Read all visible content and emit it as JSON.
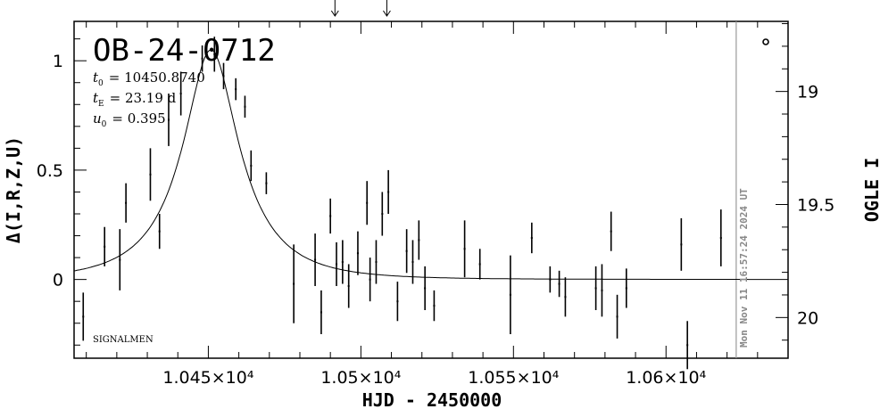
{
  "chart_data": {
    "type": "scatter",
    "title": "OB-24-0712",
    "xlabel": "HJD - 2450000",
    "ylabel": "Δ(I,R,Z,U)",
    "y2label": "OGLE I",
    "xlim": [
      10406,
      10640
    ],
    "ylim": [
      -0.36,
      1.18
    ],
    "y2lim": [
      20.18,
      18.69
    ],
    "grid": false,
    "x_ticks": [
      {
        "value": 10450,
        "label": "1.045×10⁴"
      },
      {
        "value": 10500,
        "label": "1.05×10⁴"
      },
      {
        "value": 10550,
        "label": "1.055×10⁴"
      },
      {
        "value": 10600,
        "label": "1.06×10⁴"
      }
    ],
    "y_ticks": [
      {
        "value": 0,
        "label": "0"
      },
      {
        "value": 0.5,
        "label": "0.5"
      },
      {
        "value": 1,
        "label": "1"
      }
    ],
    "y2_ticks": [
      {
        "value": 19,
        "label": "19"
      },
      {
        "value": 19.5,
        "label": "19.5"
      },
      {
        "value": 20,
        "label": "20"
      }
    ],
    "params": [
      {
        "name": "t",
        "sub": "0",
        "value": "= 10450.8740"
      },
      {
        "name": "t",
        "sub": "E",
        "value": "= 23.19 d"
      },
      {
        "name": "u",
        "sub": "0",
        "value": "= 0.395"
      }
    ],
    "model": {
      "t0": 10450.874,
      "tE": 23.19,
      "u0": 0.395
    },
    "now_line_x": 10623,
    "timestamp": "Mon Nov 11 16:57:24 2024 UT",
    "source_label": "SIGNALMEN",
    "arrows_x": [
      10491.5,
      10508.5
    ],
    "series": [
      {
        "points": [
          {
            "x": 10409,
            "y": -0.17,
            "err": 0.11
          },
          {
            "x": 10416,
            "y": 0.15,
            "err": 0.09
          },
          {
            "x": 10421,
            "y": 0.09,
            "err": 0.14
          },
          {
            "x": 10423,
            "y": 0.35,
            "err": 0.09
          },
          {
            "x": 10431,
            "y": 0.48,
            "err": 0.12
          },
          {
            "x": 10434,
            "y": 0.22,
            "err": 0.08
          },
          {
            "x": 10437,
            "y": 0.73,
            "err": 0.12
          },
          {
            "x": 10441,
            "y": 0.85,
            "err": 0.1
          },
          {
            "x": 10448,
            "y": 1.01,
            "err": 0.06
          },
          {
            "x": 10452,
            "y": 1.03,
            "err": 0.08
          },
          {
            "x": 10455,
            "y": 0.93,
            "err": 0.06
          },
          {
            "x": 10459,
            "y": 0.87,
            "err": 0.05
          },
          {
            "x": 10462,
            "y": 0.79,
            "err": 0.05
          },
          {
            "x": 10464,
            "y": 0.52,
            "err": 0.07
          },
          {
            "x": 10469,
            "y": 0.44,
            "err": 0.05
          },
          {
            "x": 10478,
            "y": -0.02,
            "err": 0.18
          },
          {
            "x": 10485,
            "y": 0.09,
            "err": 0.12
          },
          {
            "x": 10487,
            "y": -0.15,
            "err": 0.1
          },
          {
            "x": 10490,
            "y": 0.29,
            "err": 0.08
          },
          {
            "x": 10492,
            "y": 0.07,
            "err": 0.1
          },
          {
            "x": 10494,
            "y": 0.08,
            "err": 0.1
          },
          {
            "x": 10496,
            "y": -0.03,
            "err": 0.1
          },
          {
            "x": 10499,
            "y": 0.12,
            "err": 0.1
          },
          {
            "x": 10502,
            "y": 0.35,
            "err": 0.1
          },
          {
            "x": 10503,
            "y": 0.0,
            "err": 0.1
          },
          {
            "x": 10505,
            "y": 0.08,
            "err": 0.1
          },
          {
            "x": 10507,
            "y": 0.3,
            "err": 0.1
          },
          {
            "x": 10509,
            "y": 0.4,
            "err": 0.1
          },
          {
            "x": 10512,
            "y": -0.1,
            "err": 0.09
          },
          {
            "x": 10515,
            "y": 0.13,
            "err": 0.1
          },
          {
            "x": 10517,
            "y": 0.08,
            "err": 0.1
          },
          {
            "x": 10519,
            "y": 0.18,
            "err": 0.09
          },
          {
            "x": 10521,
            "y": -0.04,
            "err": 0.1
          },
          {
            "x": 10524,
            "y": -0.12,
            "err": 0.07
          },
          {
            "x": 10534,
            "y": 0.14,
            "err": 0.13
          },
          {
            "x": 10539,
            "y": 0.07,
            "err": 0.07
          },
          {
            "x": 10549,
            "y": -0.07,
            "err": 0.18
          },
          {
            "x": 10556,
            "y": 0.19,
            "err": 0.07
          },
          {
            "x": 10562,
            "y": 0.0,
            "err": 0.06
          },
          {
            "x": 10565,
            "y": -0.02,
            "err": 0.06
          },
          {
            "x": 10567,
            "y": -0.08,
            "err": 0.09
          },
          {
            "x": 10577,
            "y": -0.04,
            "err": 0.1
          },
          {
            "x": 10579,
            "y": -0.05,
            "err": 0.12
          },
          {
            "x": 10582,
            "y": 0.22,
            "err": 0.09
          },
          {
            "x": 10584,
            "y": -0.17,
            "err": 0.1
          },
          {
            "x": 10587,
            "y": -0.04,
            "err": 0.09
          },
          {
            "x": 10605,
            "y": 0.16,
            "err": 0.12
          },
          {
            "x": 10607,
            "y": -0.3,
            "err": 0.11
          },
          {
            "x": 10618,
            "y": 0.19,
            "err": 0.13
          }
        ]
      }
    ]
  }
}
